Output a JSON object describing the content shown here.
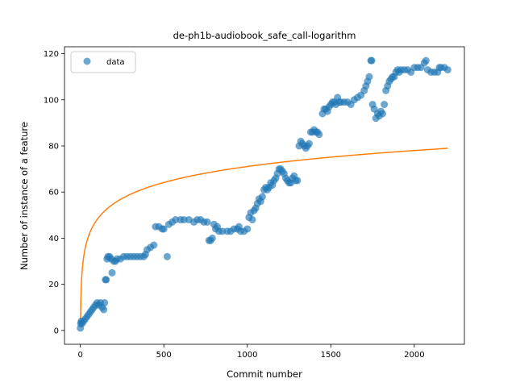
{
  "chart_data": {
    "type": "scatter",
    "title": "de-ph1b-audiobook_safe_call-logarithm",
    "xlabel": "Commit number",
    "ylabel": "Number of instance of a feature",
    "xlim": [
      -95,
      2300
    ],
    "ylim": [
      -6,
      123
    ],
    "xticks": [
      0,
      500,
      1000,
      1500,
      2000
    ],
    "yticks": [
      0,
      20,
      40,
      60,
      80,
      100,
      120
    ],
    "grid": false,
    "legend": {
      "placement": "top-left",
      "entries": [
        "data"
      ]
    },
    "colors": {
      "data": "#1f77b4",
      "fit": "#ff7f0e"
    },
    "series": [
      {
        "name": "data",
        "kind": "scatter",
        "points": [
          [
            0,
            1
          ],
          [
            2,
            3
          ],
          [
            5,
            4
          ],
          [
            10,
            3
          ],
          [
            20,
            4
          ],
          [
            30,
            5
          ],
          [
            40,
            6
          ],
          [
            50,
            7
          ],
          [
            60,
            8
          ],
          [
            70,
            9
          ],
          [
            80,
            10
          ],
          [
            90,
            11
          ],
          [
            100,
            12
          ],
          [
            110,
            11
          ],
          [
            120,
            12
          ],
          [
            130,
            10
          ],
          [
            140,
            9
          ],
          [
            145,
            12
          ],
          [
            150,
            22
          ],
          [
            155,
            22
          ],
          [
            160,
            31
          ],
          [
            165,
            32
          ],
          [
            175,
            32
          ],
          [
            185,
            31
          ],
          [
            190,
            25
          ],
          [
            200,
            30
          ],
          [
            210,
            30
          ],
          [
            220,
            31
          ],
          [
            240,
            31
          ],
          [
            260,
            32
          ],
          [
            280,
            32
          ],
          [
            300,
            32
          ],
          [
            320,
            32
          ],
          [
            340,
            32
          ],
          [
            360,
            32
          ],
          [
            380,
            32
          ],
          [
            390,
            33
          ],
          [
            400,
            35
          ],
          [
            420,
            36
          ],
          [
            440,
            37
          ],
          [
            450,
            45
          ],
          [
            470,
            45
          ],
          [
            490,
            44
          ],
          [
            500,
            44
          ],
          [
            520,
            32
          ],
          [
            530,
            46
          ],
          [
            550,
            47
          ],
          [
            570,
            48
          ],
          [
            600,
            48
          ],
          [
            620,
            48
          ],
          [
            650,
            48
          ],
          [
            680,
            47
          ],
          [
            700,
            48
          ],
          [
            720,
            48
          ],
          [
            740,
            47
          ],
          [
            760,
            47
          ],
          [
            770,
            39
          ],
          [
            780,
            39
          ],
          [
            790,
            40
          ],
          [
            800,
            46
          ],
          [
            810,
            44
          ],
          [
            820,
            45
          ],
          [
            830,
            43
          ],
          [
            850,
            43
          ],
          [
            880,
            43
          ],
          [
            900,
            43
          ],
          [
            920,
            44
          ],
          [
            940,
            44
          ],
          [
            950,
            45
          ],
          [
            960,
            43
          ],
          [
            980,
            43
          ],
          [
            1000,
            44
          ],
          [
            1010,
            49
          ],
          [
            1020,
            51
          ],
          [
            1030,
            48
          ],
          [
            1040,
            52
          ],
          [
            1050,
            53
          ],
          [
            1060,
            55
          ],
          [
            1070,
            57
          ],
          [
            1080,
            56
          ],
          [
            1090,
            58
          ],
          [
            1100,
            61
          ],
          [
            1110,
            62
          ],
          [
            1120,
            61
          ],
          [
            1130,
            62
          ],
          [
            1140,
            64
          ],
          [
            1150,
            63
          ],
          [
            1160,
            65
          ],
          [
            1170,
            66
          ],
          [
            1180,
            68
          ],
          [
            1190,
            70
          ],
          [
            1200,
            70
          ],
          [
            1210,
            69
          ],
          [
            1220,
            68
          ],
          [
            1230,
            66
          ],
          [
            1240,
            65
          ],
          [
            1250,
            64
          ],
          [
            1260,
            64
          ],
          [
            1270,
            66
          ],
          [
            1280,
            67
          ],
          [
            1290,
            65
          ],
          [
            1300,
            65
          ],
          [
            1310,
            80
          ],
          [
            1320,
            82
          ],
          [
            1330,
            81
          ],
          [
            1340,
            80
          ],
          [
            1350,
            79
          ],
          [
            1360,
            80
          ],
          [
            1370,
            81
          ],
          [
            1380,
            86
          ],
          [
            1390,
            86
          ],
          [
            1400,
            87
          ],
          [
            1410,
            86
          ],
          [
            1420,
            86
          ],
          [
            1430,
            85
          ],
          [
            1450,
            94
          ],
          [
            1460,
            96
          ],
          [
            1470,
            96
          ],
          [
            1480,
            95
          ],
          [
            1490,
            97
          ],
          [
            1500,
            98
          ],
          [
            1510,
            99
          ],
          [
            1520,
            99
          ],
          [
            1530,
            98
          ],
          [
            1540,
            101
          ],
          [
            1550,
            99
          ],
          [
            1560,
            99
          ],
          [
            1580,
            99
          ],
          [
            1600,
            99
          ],
          [
            1620,
            98
          ],
          [
            1640,
            100
          ],
          [
            1660,
            101
          ],
          [
            1680,
            102
          ],
          [
            1700,
            104
          ],
          [
            1710,
            106
          ],
          [
            1720,
            108
          ],
          [
            1730,
            110
          ],
          [
            1740,
            117
          ],
          [
            1745,
            117
          ],
          [
            1750,
            98
          ],
          [
            1760,
            96
          ],
          [
            1770,
            92
          ],
          [
            1780,
            94
          ],
          [
            1790,
            93
          ],
          [
            1800,
            95
          ],
          [
            1810,
            94
          ],
          [
            1820,
            98
          ],
          [
            1830,
            104
          ],
          [
            1840,
            106
          ],
          [
            1850,
            108
          ],
          [
            1860,
            109
          ],
          [
            1870,
            110
          ],
          [
            1880,
            110
          ],
          [
            1890,
            112
          ],
          [
            1900,
            113
          ],
          [
            1910,
            112
          ],
          [
            1920,
            113
          ],
          [
            1940,
            113
          ],
          [
            1960,
            113
          ],
          [
            1980,
            112
          ],
          [
            2000,
            114
          ],
          [
            2020,
            114
          ],
          [
            2040,
            114
          ],
          [
            2060,
            116
          ],
          [
            2070,
            117
          ],
          [
            2080,
            113
          ],
          [
            2100,
            112
          ],
          [
            2120,
            112
          ],
          [
            2140,
            112
          ],
          [
            2150,
            114
          ],
          [
            2160,
            114
          ],
          [
            2180,
            114
          ],
          [
            2200,
            113
          ]
        ]
      },
      {
        "kind": "line",
        "formula": "a + b*ln(x)",
        "a": 2.0,
        "b": 10.0,
        "xrange": [
          1,
          2200
        ]
      }
    ]
  }
}
